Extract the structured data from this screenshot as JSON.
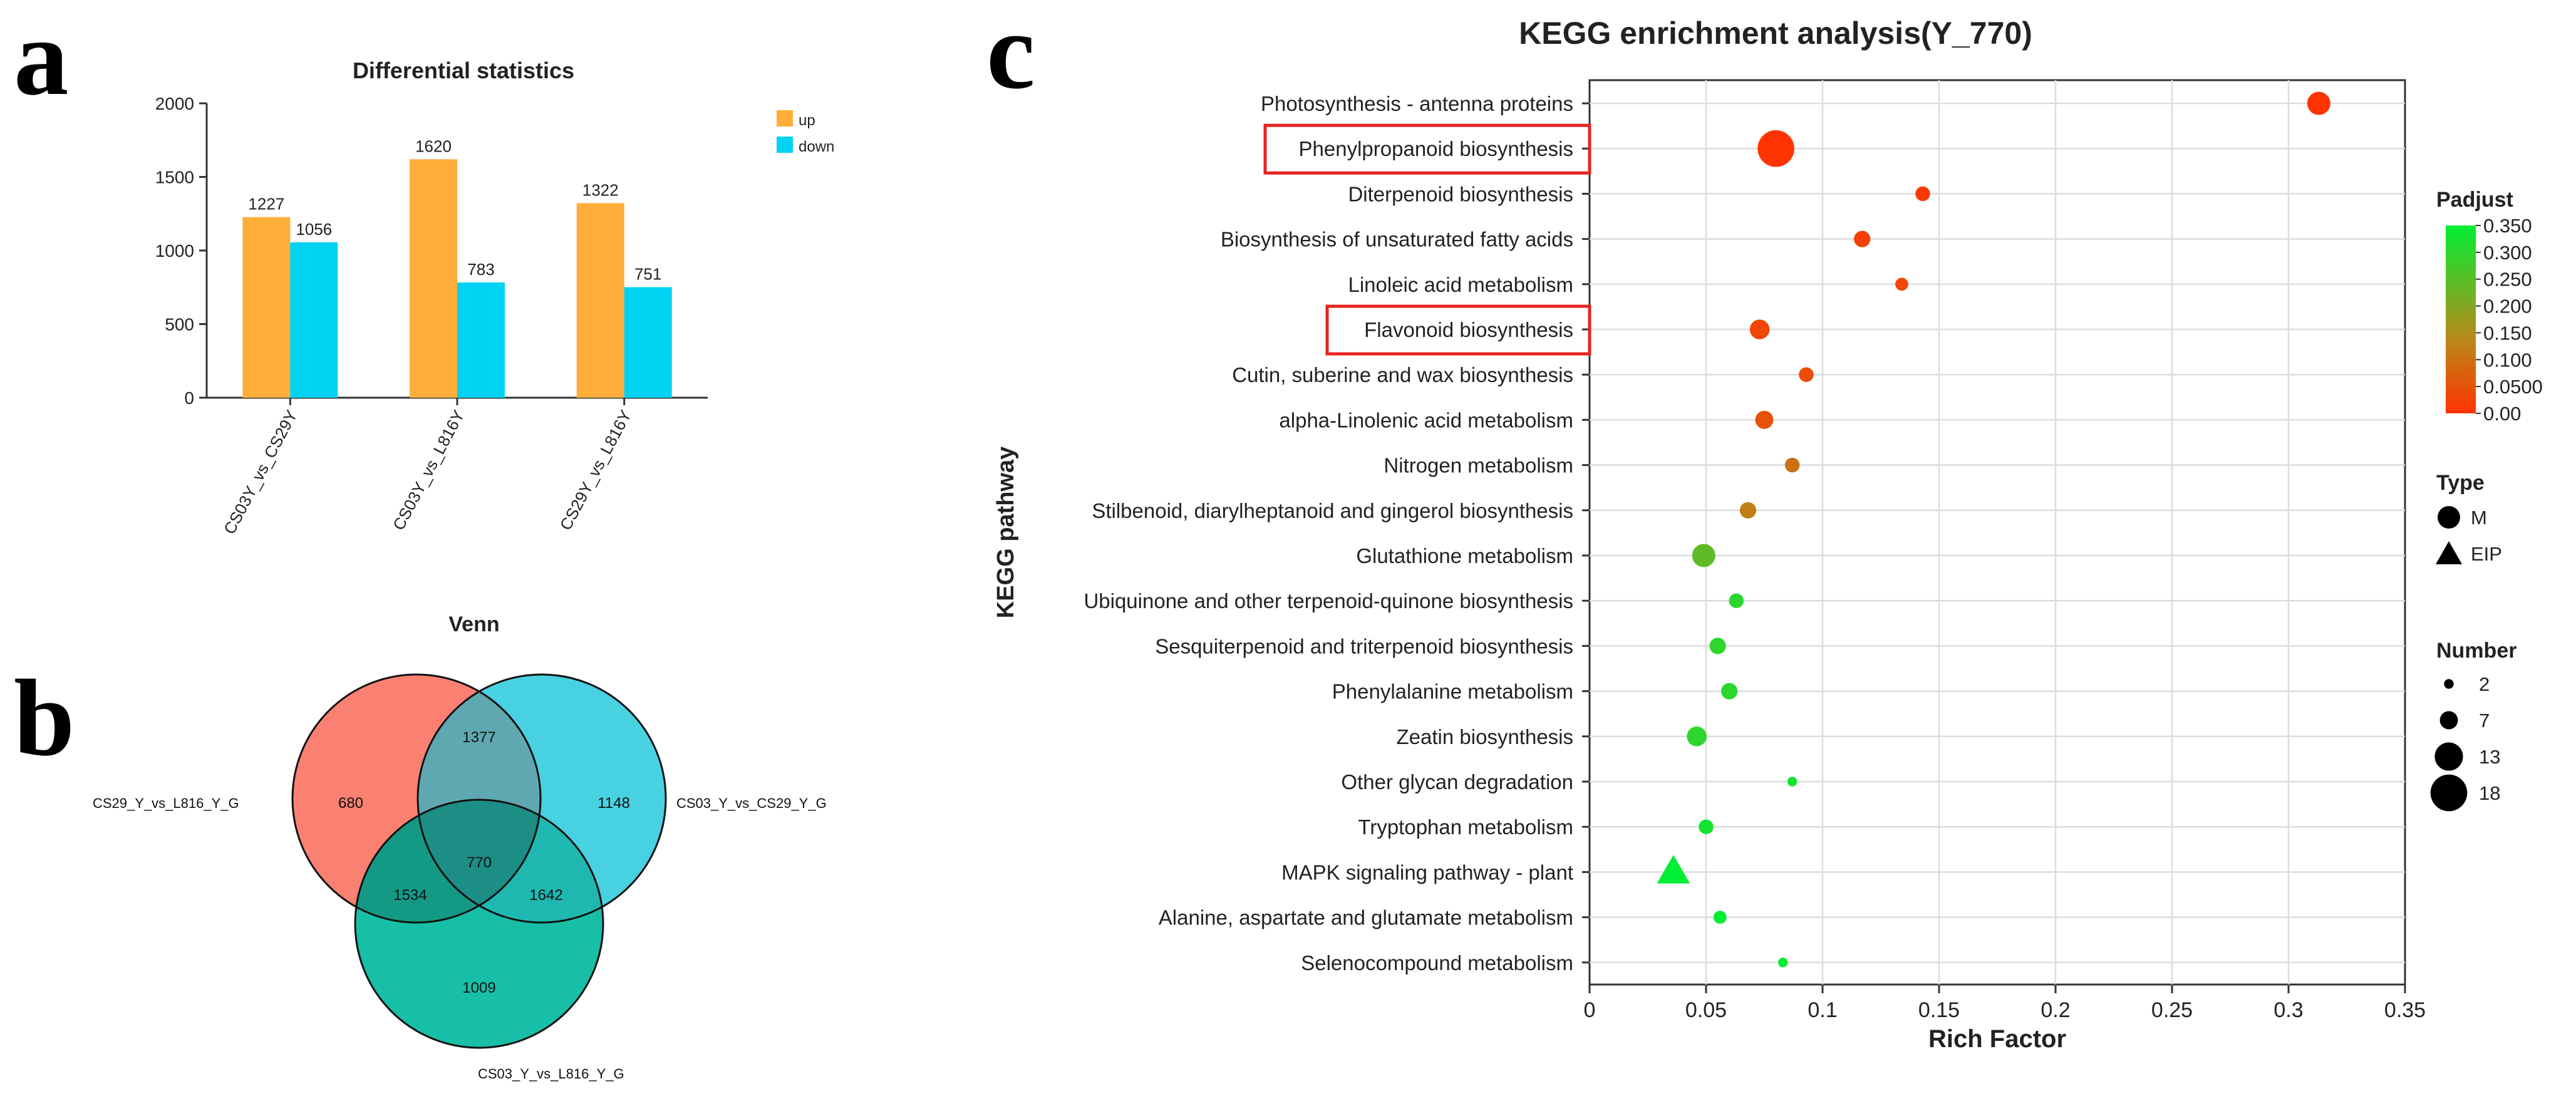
{
  "panels": {
    "a": "a",
    "b": "b",
    "c": "c"
  },
  "chart_data": [
    {
      "id": "panel-a",
      "type": "bar",
      "title": "Differential statistics",
      "xlabel": "",
      "ylabel": "",
      "ylim": [
        0,
        2000
      ],
      "yticks": [
        0,
        500,
        1000,
        1500,
        2000
      ],
      "grid": false,
      "legend_position": "right",
      "categories": [
        "CS03Y_vs_CS29Y",
        "CS03Y_vs_L816Y",
        "CS29Y_vs_L816Y"
      ],
      "series": [
        {
          "name": "up",
          "color": "#FFAE3A",
          "values": [
            1227,
            1620,
            1322
          ]
        },
        {
          "name": "down",
          "color": "#00D2F2",
          "values": [
            1056,
            783,
            751
          ]
        }
      ]
    },
    {
      "id": "panel-b",
      "type": "venn",
      "title": "Venn",
      "sets": [
        {
          "name": "CS29_Y_vs_L816_Y_G",
          "color": "#FA8072"
        },
        {
          "name": "CS03_Y_vs_CS29_Y_G",
          "color": "#48D1E0"
        },
        {
          "name": "CS03_Y_vs_L816_Y_G",
          "color": "#17BFA6"
        }
      ],
      "regions": {
        "only_a": 680,
        "only_b": 1148,
        "only_c": 1009,
        "ab": 1377,
        "ac": 1534,
        "bc": 1642,
        "abc": 770
      }
    },
    {
      "id": "panel-c",
      "type": "scatter",
      "title": "KEGG enrichment analysis(Y_770)",
      "xlabel": "Rich Factor",
      "ylabel": "KEGG pathway",
      "xlim": [
        0,
        0.35
      ],
      "xticks": [
        0,
        0.05,
        0.1,
        0.15,
        0.2,
        0.25,
        0.3,
        0.35
      ],
      "xtick_labels": [
        "0",
        "0.05",
        "0.1",
        "0.15",
        "0.2",
        "0.25",
        "0.3",
        "0.35"
      ],
      "grid": true,
      "highlighted": [
        "Phenylpropanoid biosynthesis",
        "Flavonoid biosynthesis"
      ],
      "points": [
        {
          "pathway": "Photosynthesis - antenna proteins",
          "rich_factor": 0.313,
          "padjust": 0.0,
          "number": 10,
          "type": "M"
        },
        {
          "pathway": "Phenylpropanoid biosynthesis",
          "rich_factor": 0.08,
          "padjust": 0.0,
          "number": 18,
          "type": "M"
        },
        {
          "pathway": "Diterpenoid biosynthesis",
          "rich_factor": 0.143,
          "padjust": 0.01,
          "number": 5,
          "type": "M"
        },
        {
          "pathway": "Biosynthesis of unsaturated fatty acids",
          "rich_factor": 0.117,
          "padjust": 0.02,
          "number": 6,
          "type": "M"
        },
        {
          "pathway": "Linoleic acid metabolism",
          "rich_factor": 0.134,
          "padjust": 0.03,
          "number": 4,
          "type": "M"
        },
        {
          "pathway": "Flavonoid biosynthesis",
          "rich_factor": 0.073,
          "padjust": 0.03,
          "number": 8,
          "type": "M"
        },
        {
          "pathway": "Cutin, suberine and wax biosynthesis",
          "rich_factor": 0.093,
          "padjust": 0.04,
          "number": 5,
          "type": "M"
        },
        {
          "pathway": "alpha-Linolenic acid metabolism",
          "rich_factor": 0.075,
          "padjust": 0.05,
          "number": 7,
          "type": "M"
        },
        {
          "pathway": "Nitrogen metabolism",
          "rich_factor": 0.087,
          "padjust": 0.1,
          "number": 5,
          "type": "M"
        },
        {
          "pathway": "Stilbenoid, diarylheptanoid and gingerol biosynthesis",
          "rich_factor": 0.068,
          "padjust": 0.12,
          "number": 6,
          "type": "M"
        },
        {
          "pathway": "Glutathione metabolism",
          "rich_factor": 0.049,
          "padjust": 0.24,
          "number": 10,
          "type": "M"
        },
        {
          "pathway": "Ubiquinone and other terpenoid-quinone biosynthesis",
          "rich_factor": 0.063,
          "padjust": 0.3,
          "number": 5,
          "type": "M"
        },
        {
          "pathway": "Sesquiterpenoid and triterpenoid biosynthesis",
          "rich_factor": 0.055,
          "padjust": 0.3,
          "number": 6,
          "type": "M"
        },
        {
          "pathway": "Phenylalanine metabolism",
          "rich_factor": 0.06,
          "padjust": 0.3,
          "number": 6,
          "type": "M"
        },
        {
          "pathway": "Zeatin biosynthesis",
          "rich_factor": 0.046,
          "padjust": 0.3,
          "number": 8,
          "type": "M"
        },
        {
          "pathway": "Other glycan degradation",
          "rich_factor": 0.087,
          "padjust": 0.33,
          "number": 2,
          "type": "M"
        },
        {
          "pathway": "Tryptophan metabolism",
          "rich_factor": 0.05,
          "padjust": 0.33,
          "number": 5,
          "type": "M"
        },
        {
          "pathway": "MAPK signaling pathway - plant",
          "rich_factor": 0.036,
          "padjust": 0.35,
          "number": 14,
          "type": "EIP"
        },
        {
          "pathway": "Alanine, aspartate and glutamate metabolism",
          "rich_factor": 0.056,
          "padjust": 0.35,
          "number": 4,
          "type": "M"
        },
        {
          "pathway": "Selenocompound metabolism",
          "rich_factor": 0.083,
          "padjust": 0.35,
          "number": 2,
          "type": "M"
        }
      ],
      "legend": {
        "padjust_title": "Padjust",
        "padjust_ticks": [
          "0.350",
          "0.300",
          "0.250",
          "0.200",
          "0.150",
          "0.100",
          "0.0500",
          "0.00"
        ],
        "padjust_range": [
          0,
          0.35
        ],
        "color_low": "#FF3300",
        "color_mid": "#B88A1A",
        "color_high": "#00EE33",
        "type_title": "Type",
        "types": [
          {
            "name": "M",
            "shape": "circle"
          },
          {
            "name": "EIP",
            "shape": "triangle"
          }
        ],
        "number_title": "Number",
        "numbers": [
          2,
          7,
          13,
          18
        ]
      }
    }
  ]
}
